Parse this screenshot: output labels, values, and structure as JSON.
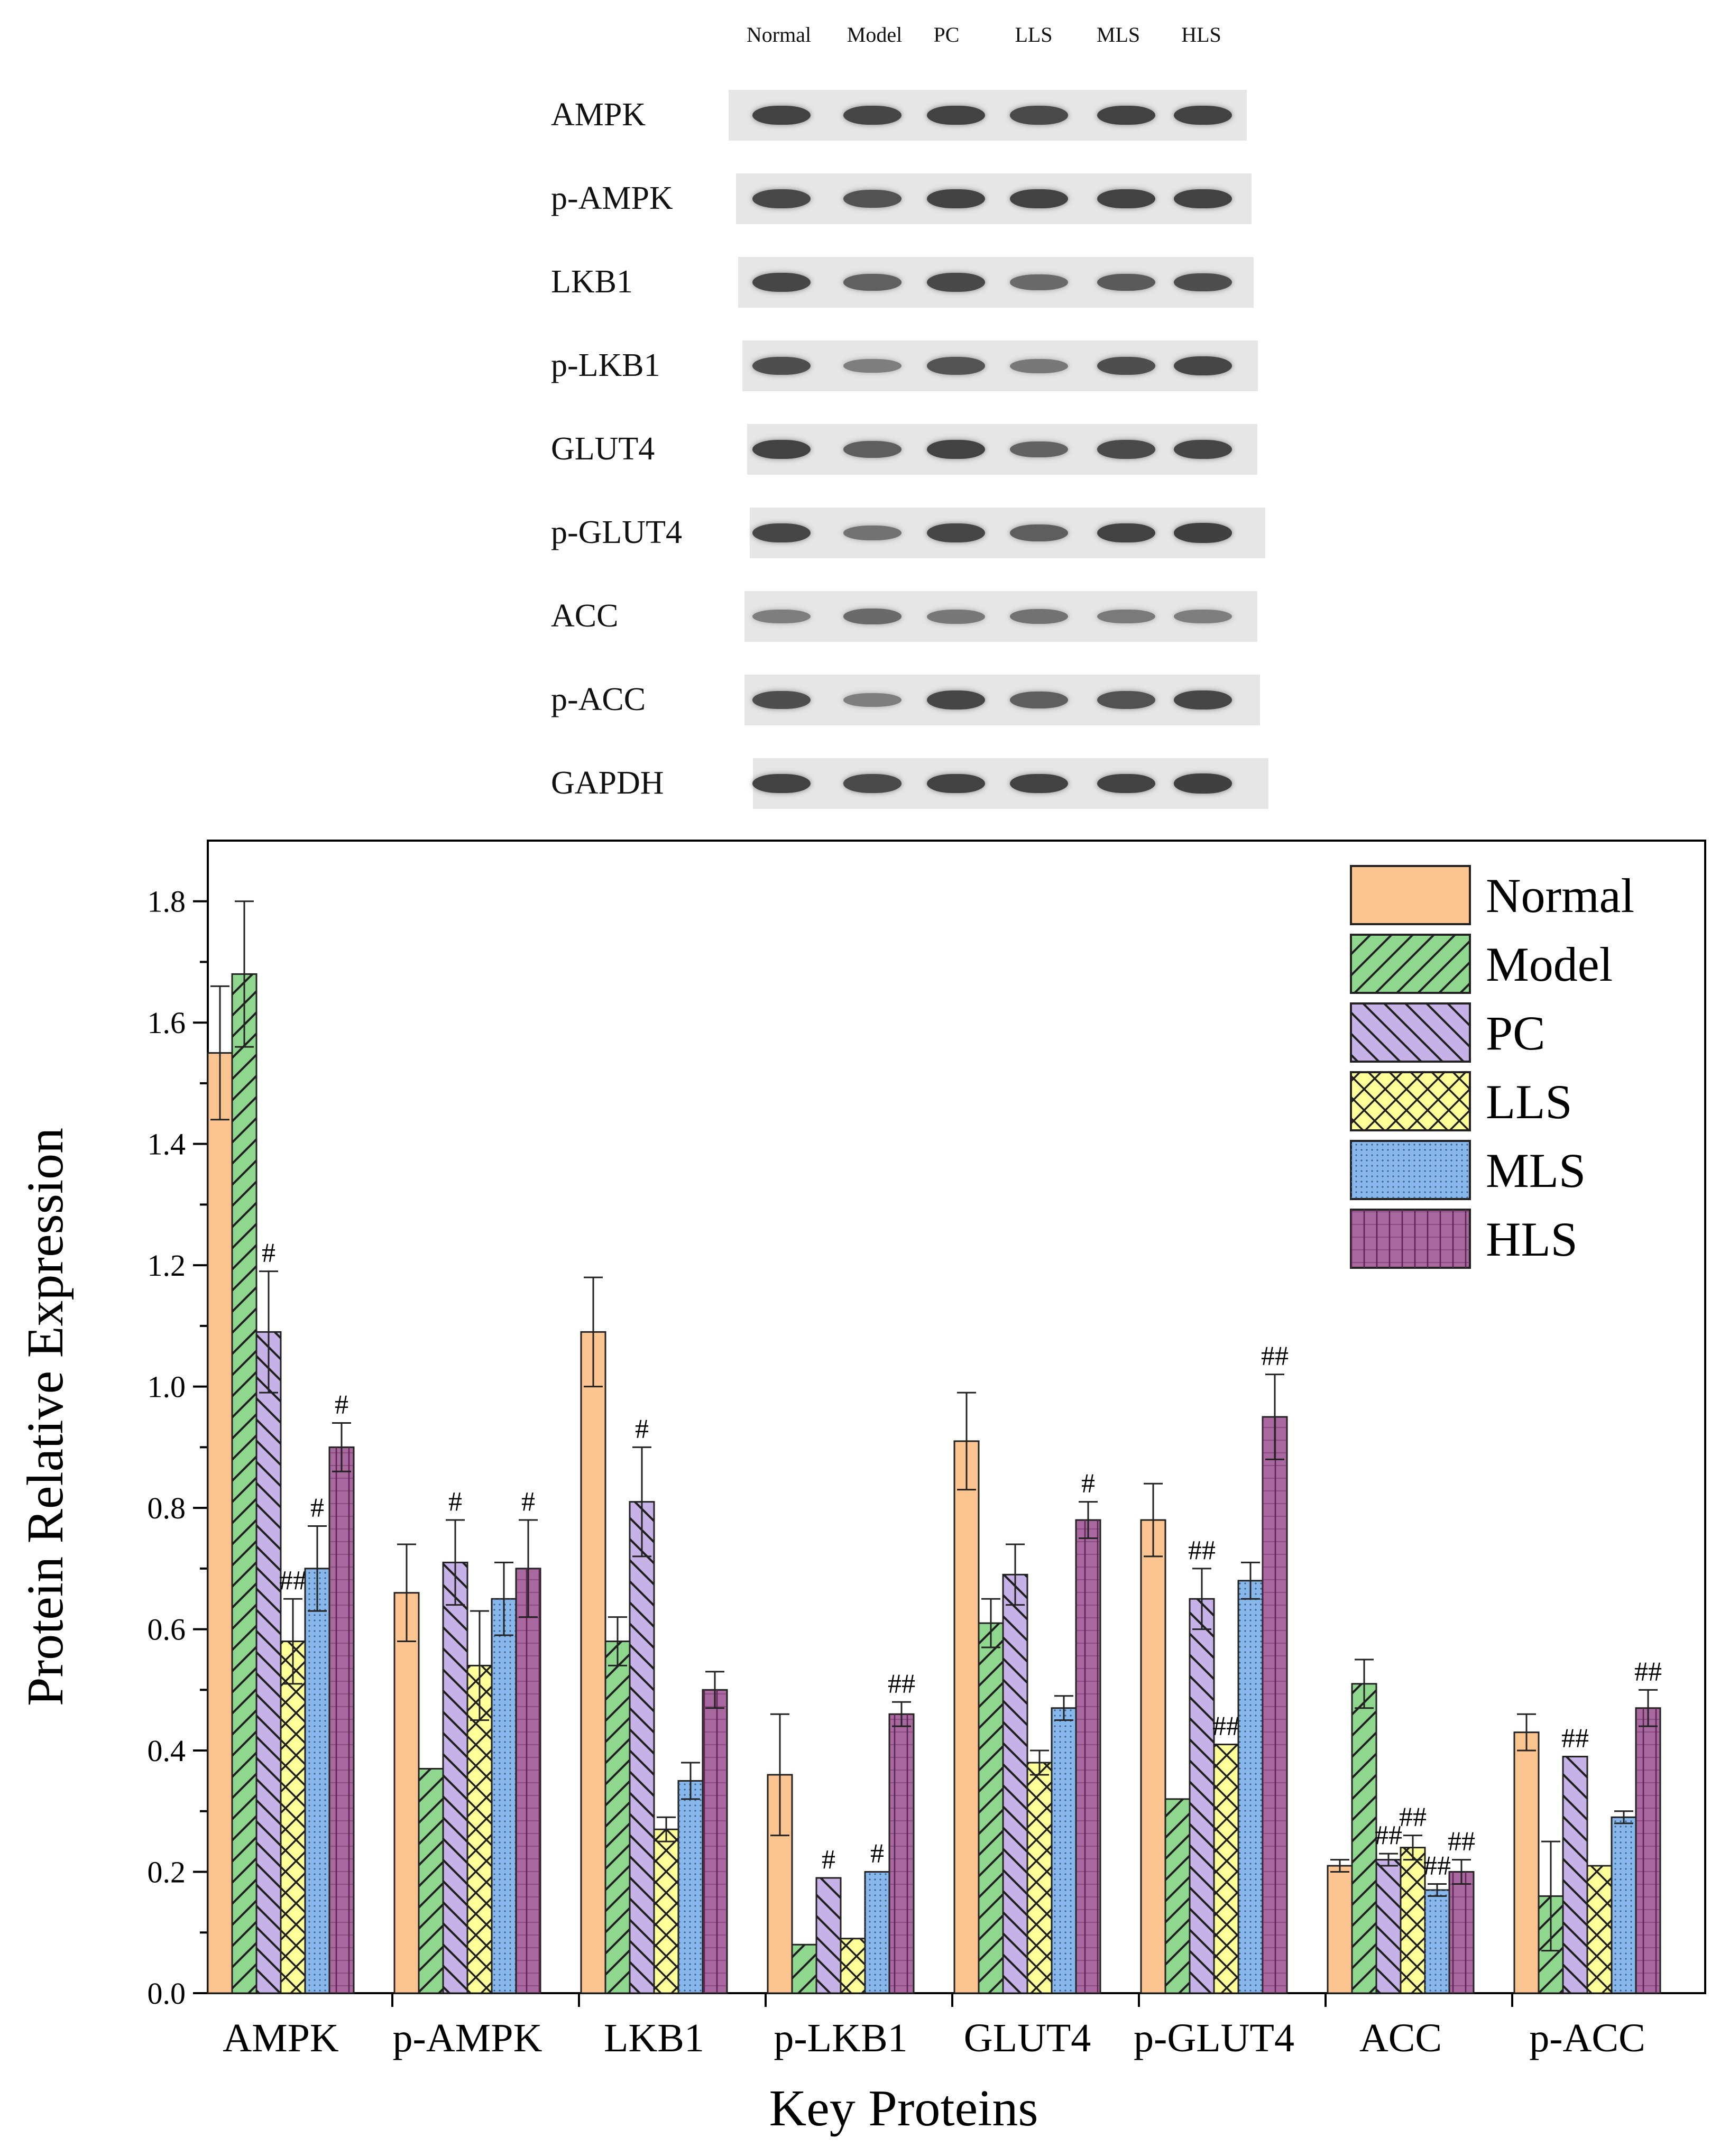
{
  "blot": {
    "lane_labels": [
      "Normal",
      "Model",
      "PC",
      "LLS",
      "MLS",
      "HLS"
    ],
    "rows": [
      {
        "label": "AMPK",
        "intensity": [
          0.95,
          0.92,
          0.95,
          0.88,
          0.95,
          0.95
        ]
      },
      {
        "label": "p-AMPK",
        "intensity": [
          0.9,
          0.82,
          0.95,
          0.95,
          0.95,
          0.95
        ]
      },
      {
        "label": "LKB1",
        "intensity": [
          0.92,
          0.7,
          0.9,
          0.62,
          0.75,
          0.85
        ]
      },
      {
        "label": "p-LKB1",
        "intensity": [
          0.85,
          0.45,
          0.8,
          0.5,
          0.85,
          0.92
        ]
      },
      {
        "label": "GLUT4",
        "intensity": [
          0.95,
          0.72,
          0.95,
          0.68,
          0.88,
          0.92
        ]
      },
      {
        "label": "p-GLUT4",
        "intensity": [
          0.92,
          0.55,
          0.92,
          0.72,
          0.95,
          0.97
        ]
      },
      {
        "label": "ACC",
        "intensity": [
          0.45,
          0.62,
          0.5,
          0.55,
          0.48,
          0.45
        ]
      },
      {
        "label": "p-ACC",
        "intensity": [
          0.85,
          0.45,
          0.92,
          0.72,
          0.82,
          0.92
        ]
      },
      {
        "label": "GAPDH",
        "intensity": [
          0.95,
          0.88,
          0.95,
          0.95,
          0.95,
          0.97
        ]
      }
    ]
  },
  "chart_data": {
    "type": "bar",
    "xlabel": "Key Proteins",
    "ylabel": "Protein Relative Expression",
    "ylim": [
      0,
      1.9
    ],
    "yticks": [
      0.0,
      0.2,
      0.4,
      0.6,
      0.8,
      1.0,
      1.2,
      1.4,
      1.6,
      1.8
    ],
    "ytick_labels": [
      "0.0",
      "0.2",
      "0.4",
      "0.6",
      "0.8",
      "1.0",
      "1.2",
      "1.4",
      "1.6",
      "1.8"
    ],
    "legend_position": "top-right",
    "categories": [
      "AMPK",
      "p-AMPK",
      "LKB1",
      "p-LKB1",
      "GLUT4",
      "p-GLUT4",
      "ACC",
      "p-ACC"
    ],
    "series": [
      {
        "name": "Normal",
        "color": "#fbc490",
        "pattern": "none",
        "values": [
          1.55,
          0.66,
          1.09,
          0.36,
          0.91,
          0.78,
          0.21,
          0.43
        ],
        "errors": [
          0.11,
          0.08,
          0.09,
          0.1,
          0.08,
          0.06,
          0.01,
          0.03
        ],
        "annotations": [
          "",
          "",
          "",
          "",
          "",
          "",
          "",
          ""
        ]
      },
      {
        "name": "Model",
        "color": "#8fd68f",
        "pattern": "diag",
        "values": [
          1.68,
          0.37,
          0.58,
          0.08,
          0.61,
          0.32,
          0.51,
          0.16
        ],
        "errors": [
          0.12,
          0.0,
          0.04,
          0.0,
          0.04,
          0.0,
          0.04,
          0.09
        ],
        "annotations": [
          "",
          "",
          "",
          "",
          "",
          "",
          "",
          ""
        ]
      },
      {
        "name": "PC",
        "color": "#c6b2e6",
        "pattern": "anti",
        "values": [
          1.09,
          0.71,
          0.81,
          0.19,
          0.69,
          0.65,
          0.22,
          0.39
        ],
        "errors": [
          0.1,
          0.07,
          0.09,
          0.0,
          0.05,
          0.05,
          0.01,
          0.0
        ],
        "annotations": [
          "#",
          "#",
          "#",
          "#",
          "",
          "##",
          "##",
          "##"
        ]
      },
      {
        "name": "LLS",
        "color": "#ffff9a",
        "pattern": "cross",
        "values": [
          0.58,
          0.54,
          0.27,
          0.09,
          0.38,
          0.41,
          0.24,
          0.21
        ],
        "errors": [
          0.07,
          0.09,
          0.02,
          0.0,
          0.02,
          0.0,
          0.02,
          0.0
        ],
        "annotations": [
          "##",
          "",
          "",
          "",
          "",
          "##",
          "##",
          ""
        ]
      },
      {
        "name": "MLS",
        "color": "#88b7ec",
        "pattern": "dots",
        "values": [
          0.7,
          0.65,
          0.35,
          0.2,
          0.47,
          0.68,
          0.17,
          0.29
        ],
        "errors": [
          0.07,
          0.06,
          0.03,
          0.0,
          0.02,
          0.03,
          0.01,
          0.01
        ],
        "annotations": [
          "#",
          "",
          "",
          "#",
          "",
          "",
          "##",
          ""
        ]
      },
      {
        "name": "HLS",
        "color": "#a9689f",
        "pattern": "grid",
        "values": [
          0.9,
          0.7,
          0.5,
          0.46,
          0.78,
          0.95,
          0.2,
          0.47
        ],
        "errors": [
          0.04,
          0.08,
          0.03,
          0.02,
          0.03,
          0.07,
          0.02,
          0.03
        ],
        "annotations": [
          "#",
          "#",
          "",
          "##",
          "#",
          "##",
          "##",
          "##"
        ]
      }
    ]
  }
}
